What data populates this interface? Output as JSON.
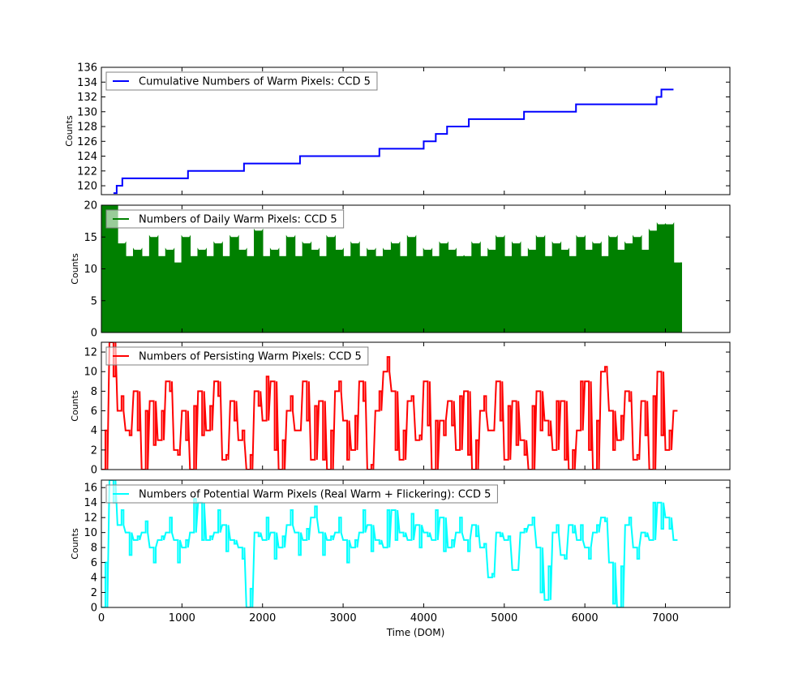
{
  "chart_data": [
    {
      "type": "line",
      "step": true,
      "legend": "Cumulative Numbers of Warm Pixels: CCD 5",
      "legend_placement": "top-left",
      "ylabel": "Counts",
      "xlabel": "",
      "xlim": [
        0,
        7800
      ],
      "ylim": [
        118.8,
        136
      ],
      "yticks": [
        120,
        122,
        124,
        126,
        128,
        130,
        132,
        134,
        136
      ],
      "color": "#0000ff",
      "points": [
        [
          150,
          119
        ],
        [
          190,
          120
        ],
        [
          260,
          121
        ],
        [
          1075,
          122
        ],
        [
          1770,
          123
        ],
        [
          2465,
          124
        ],
        [
          3450,
          125
        ],
        [
          4000,
          126
        ],
        [
          4150,
          127
        ],
        [
          4290,
          128
        ],
        [
          4560,
          129
        ],
        [
          5245,
          130
        ],
        [
          5890,
          131
        ],
        [
          6890,
          132
        ],
        [
          6950,
          133
        ],
        [
          7100,
          133
        ]
      ]
    },
    {
      "type": "bar",
      "legend": "Numbers of Daily Warm Pixels: CCD 5",
      "legend_placement": "top-left",
      "ylabel": "Counts",
      "xlabel": "",
      "xlim": [
        0,
        7800
      ],
      "ylim": [
        0,
        20
      ],
      "yticks": [
        0,
        5,
        10,
        15,
        20
      ],
      "color": "#008000",
      "x": [
        0,
        100,
        200,
        300,
        400,
        500,
        600,
        700,
        800,
        900,
        1000,
        1100,
        1200,
        1300,
        1400,
        1500,
        1600,
        1700,
        1800,
        1900,
        2000,
        2100,
        2200,
        2300,
        2400,
        2500,
        2600,
        2700,
        2800,
        2900,
        3000,
        3100,
        3200,
        3300,
        3400,
        3500,
        3600,
        3700,
        3800,
        3900,
        4000,
        4100,
        4200,
        4300,
        4400,
        4500,
        4600,
        4700,
        4800,
        4900,
        5000,
        5100,
        5200,
        5300,
        5400,
        5500,
        5600,
        5700,
        5800,
        5900,
        6000,
        6100,
        6200,
        6300,
        6400,
        6500,
        6600,
        6700,
        6800,
        6900,
        7000,
        7100
      ],
      "values": [
        20,
        20,
        14,
        12,
        13,
        12,
        15,
        12,
        13,
        11,
        15,
        12,
        13,
        12,
        14,
        12,
        15,
        13,
        12,
        16,
        12,
        13,
        12,
        15,
        12,
        14,
        13,
        12,
        15,
        13,
        12,
        14,
        12,
        13,
        12,
        13,
        14,
        12,
        15,
        12,
        13,
        12,
        14,
        13,
        12,
        12,
        14,
        12,
        13,
        15,
        12,
        14,
        12,
        13,
        15,
        12,
        14,
        13,
        12,
        15,
        13,
        14,
        12,
        15,
        13,
        14,
        15,
        13,
        16,
        17,
        17,
        11
      ]
    },
    {
      "type": "line",
      "legend": "Numbers of Persisting Warm Pixels: CCD 5",
      "legend_placement": "top-left",
      "ylabel": "Counts",
      "xlabel": "",
      "xlim": [
        0,
        7800
      ],
      "ylim": [
        0,
        13
      ],
      "yticks": [
        0,
        2,
        4,
        6,
        8,
        10,
        12
      ],
      "color": "#ff0000",
      "x": [
        0,
        100,
        200,
        300,
        400,
        500,
        600,
        700,
        800,
        900,
        1000,
        1100,
        1200,
        1300,
        1400,
        1500,
        1600,
        1700,
        1800,
        1900,
        2000,
        2100,
        2200,
        2300,
        2400,
        2500,
        2600,
        2700,
        2800,
        2900,
        3000,
        3100,
        3200,
        3300,
        3400,
        3500,
        3600,
        3700,
        3800,
        3900,
        4000,
        4100,
        4200,
        4300,
        4400,
        4500,
        4600,
        4700,
        4800,
        4900,
        5000,
        5100,
        5200,
        5300,
        5400,
        5500,
        5600,
        5700,
        5800,
        5900,
        6000,
        6100,
        6200,
        6300,
        6400,
        6500,
        6600,
        6700,
        6800,
        6900,
        7000,
        7100
      ],
      "values": [
        0,
        13,
        6,
        4,
        8,
        0,
        7,
        3,
        9,
        2,
        6,
        0,
        8,
        4,
        9,
        1,
        7,
        3,
        0,
        8,
        5,
        9,
        0,
        6,
        4,
        9,
        1,
        7,
        0,
        8,
        5,
        2,
        9,
        0,
        6,
        10,
        8,
        1,
        7,
        3,
        9,
        0,
        5,
        7,
        2,
        8,
        0,
        6,
        4,
        9,
        1,
        7,
        3,
        0,
        8,
        5,
        2,
        7,
        0,
        4,
        9,
        0,
        10,
        6,
        3,
        8,
        1,
        7,
        0,
        10,
        2,
        6
      ]
    },
    {
      "type": "line",
      "legend": "Numbers of Potential Warm Pixels (Real Warm + Flickering): CCD 5",
      "legend_placement": "top-left",
      "ylabel": "Counts",
      "xlabel": "Time (DOM)",
      "xlim": [
        0,
        7800
      ],
      "ylim": [
        0,
        17
      ],
      "yticks": [
        0,
        2,
        4,
        6,
        8,
        10,
        12,
        14,
        16
      ],
      "xticks": [
        0,
        1000,
        2000,
        3000,
        4000,
        5000,
        6000,
        7000
      ],
      "color": "#00ffff",
      "x": [
        0,
        100,
        200,
        300,
        400,
        500,
        600,
        700,
        800,
        900,
        1000,
        1100,
        1200,
        1300,
        1400,
        1500,
        1600,
        1700,
        1800,
        1900,
        2000,
        2100,
        2200,
        2300,
        2400,
        2500,
        2600,
        2700,
        2800,
        2900,
        3000,
        3100,
        3200,
        3300,
        3400,
        3500,
        3600,
        3700,
        3800,
        3900,
        4000,
        4100,
        4200,
        4300,
        4400,
        4500,
        4600,
        4700,
        4800,
        4900,
        5000,
        5100,
        5200,
        5300,
        5400,
        5500,
        5600,
        5700,
        5800,
        5900,
        6000,
        6100,
        6200,
        6300,
        6400,
        6500,
        6600,
        6700,
        6800,
        6900,
        7000,
        7100
      ],
      "values": [
        0,
        17,
        11,
        10,
        9,
        10,
        8,
        9,
        10,
        9,
        8,
        10,
        14,
        9,
        10,
        11,
        9,
        8,
        0,
        10,
        9,
        10,
        8,
        11,
        10,
        9,
        12,
        10,
        9,
        10,
        9,
        8,
        10,
        11,
        9,
        8,
        13,
        10,
        9,
        11,
        10,
        9,
        12,
        8,
        10,
        9,
        11,
        8,
        4,
        10,
        9,
        5,
        10,
        11,
        8,
        1,
        10,
        7,
        11,
        9,
        8,
        10,
        12,
        6,
        0,
        11,
        8,
        10,
        9,
        14,
        12,
        9
      ]
    }
  ]
}
